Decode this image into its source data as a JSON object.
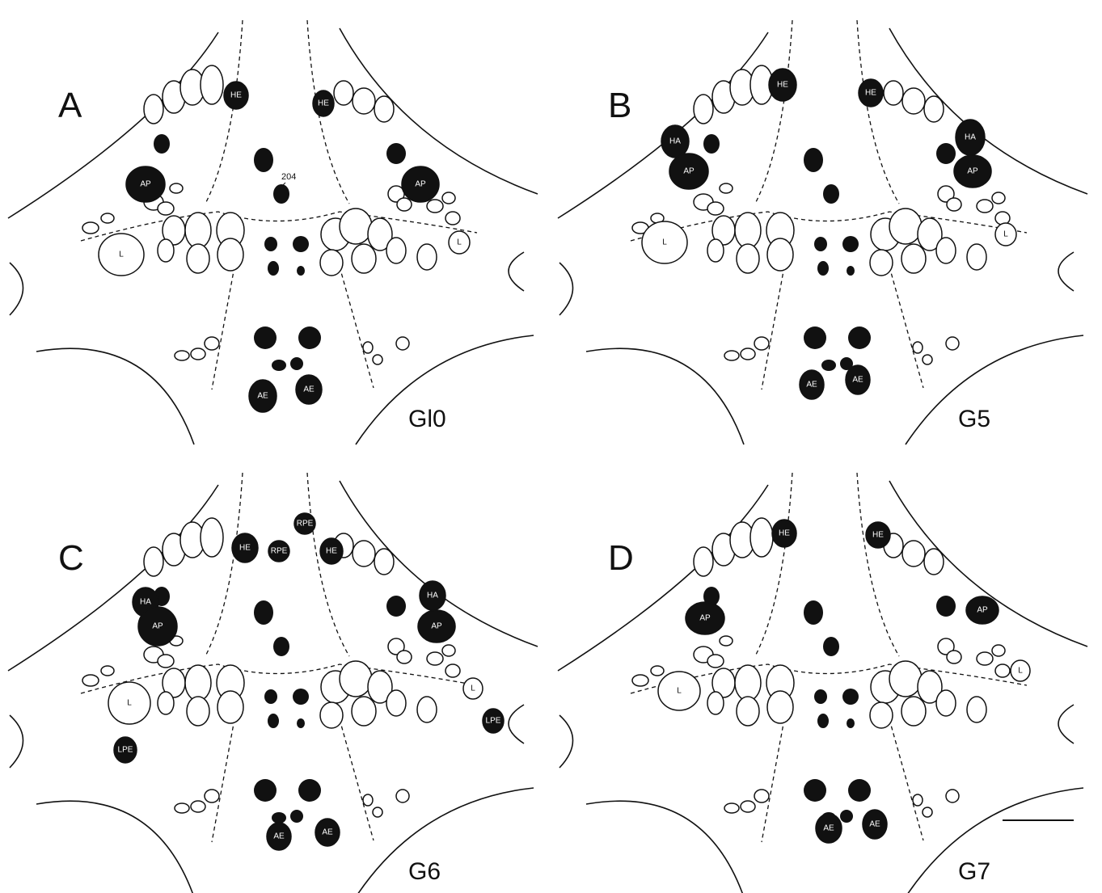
{
  "panels": [
    {
      "letter": "A",
      "ganglion": "Gl0",
      "annotation": "204",
      "cells": [
        {
          "label": "HE"
        },
        {
          "label": "HE"
        },
        {
          "label": "AP"
        },
        {
          "label": "AP"
        },
        {
          "label": "L"
        },
        {
          "label": "L"
        },
        {
          "label": "AE"
        },
        {
          "label": "AE"
        }
      ]
    },
    {
      "letter": "B",
      "ganglion": "G5",
      "cells": [
        {
          "label": "HE"
        },
        {
          "label": "HE"
        },
        {
          "label": "HA"
        },
        {
          "label": "HA"
        },
        {
          "label": "AP"
        },
        {
          "label": "AP"
        },
        {
          "label": "L"
        },
        {
          "label": "L"
        },
        {
          "label": "AE"
        },
        {
          "label": "AE"
        }
      ]
    },
    {
      "letter": "C",
      "ganglion": "G6",
      "cells": [
        {
          "label": "HE"
        },
        {
          "label": "RPE"
        },
        {
          "label": "RPE"
        },
        {
          "label": "HE"
        },
        {
          "label": "HA"
        },
        {
          "label": "HA"
        },
        {
          "label": "AP"
        },
        {
          "label": "AP"
        },
        {
          "label": "L"
        },
        {
          "label": "L"
        },
        {
          "label": "LPE"
        },
        {
          "label": "LPE"
        },
        {
          "label": "AE"
        },
        {
          "label": "AE"
        }
      ]
    },
    {
      "letter": "D",
      "ganglion": "G7",
      "cells": [
        {
          "label": "HE"
        },
        {
          "label": "HE"
        },
        {
          "label": "AP"
        },
        {
          "label": "AP"
        },
        {
          "label": "L"
        },
        {
          "label": "L"
        },
        {
          "label": "AE"
        },
        {
          "label": "AE"
        }
      ]
    }
  ]
}
